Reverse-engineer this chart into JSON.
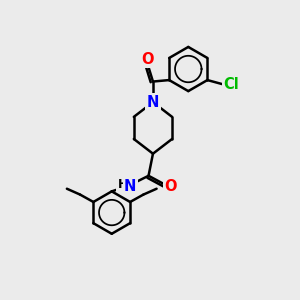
{
  "background_color": "#ebebeb",
  "bond_color": "#000000",
  "atom_colors": {
    "N": "#0000ff",
    "O": "#ff0000",
    "Cl": "#00bb00",
    "H": "#000000",
    "C": "#000000"
  },
  "bond_width": 1.8,
  "font_size_atoms": 10.5
}
